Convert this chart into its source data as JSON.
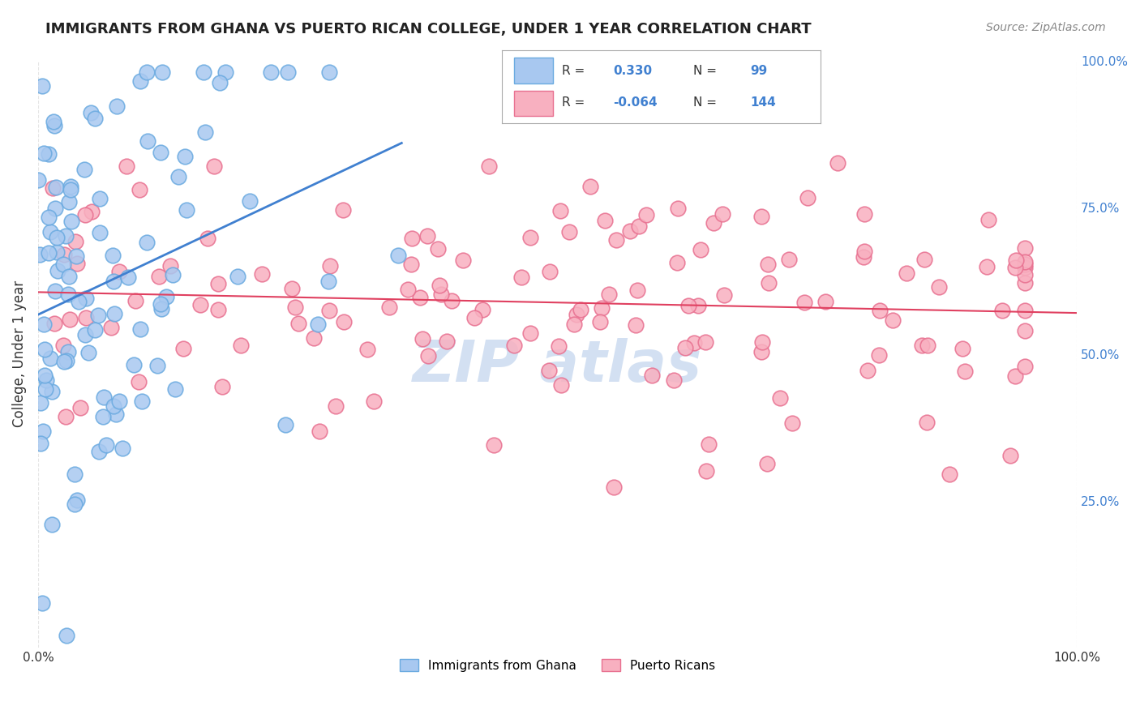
{
  "title": "IMMIGRANTS FROM GHANA VS PUERTO RICAN COLLEGE, UNDER 1 YEAR CORRELATION CHART",
  "source": "Source: ZipAtlas.com",
  "ylabel": "College, Under 1 year",
  "xlabel": "",
  "xlim": [
    0.0,
    1.0
  ],
  "ylim": [
    0.0,
    1.0
  ],
  "xtick_labels": [
    "0.0%",
    "100.0%"
  ],
  "ytick_labels_right": [
    "25.0%",
    "50.0%",
    "75.0%",
    "100.0%"
  ],
  "ghana_R": 0.33,
  "ghana_N": 99,
  "puertorico_R": -0.064,
  "puertorico_N": 144,
  "ghana_color": "#a8c8f0",
  "ghana_edge_color": "#6aaae0",
  "puertorico_color": "#f8b0c0",
  "puertorico_edge_color": "#e87090",
  "ghana_line_color": "#4080d0",
  "puertorico_line_color": "#e04060",
  "watermark_text": "ZIP atlas",
  "watermark_color": "#b0c8e8",
  "legend_blue_color": "#a8c8f0",
  "legend_pink_color": "#f8b0c0",
  "legend_text_color": "#4080d0",
  "title_fontsize": 13,
  "label_fontsize": 11,
  "background_color": "#ffffff",
  "grid_color": "#e0e0e0"
}
